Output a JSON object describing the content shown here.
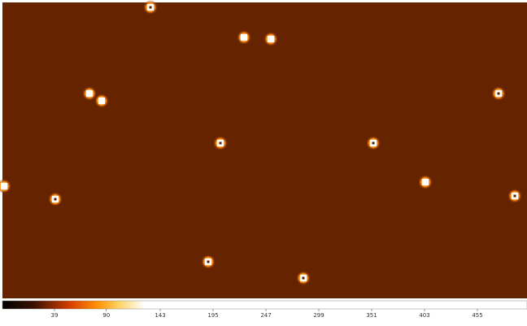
{
  "colorbar": {
    "ticks": [
      39,
      90,
      143,
      195,
      247,
      299,
      351,
      403,
      455
    ]
  }
}
